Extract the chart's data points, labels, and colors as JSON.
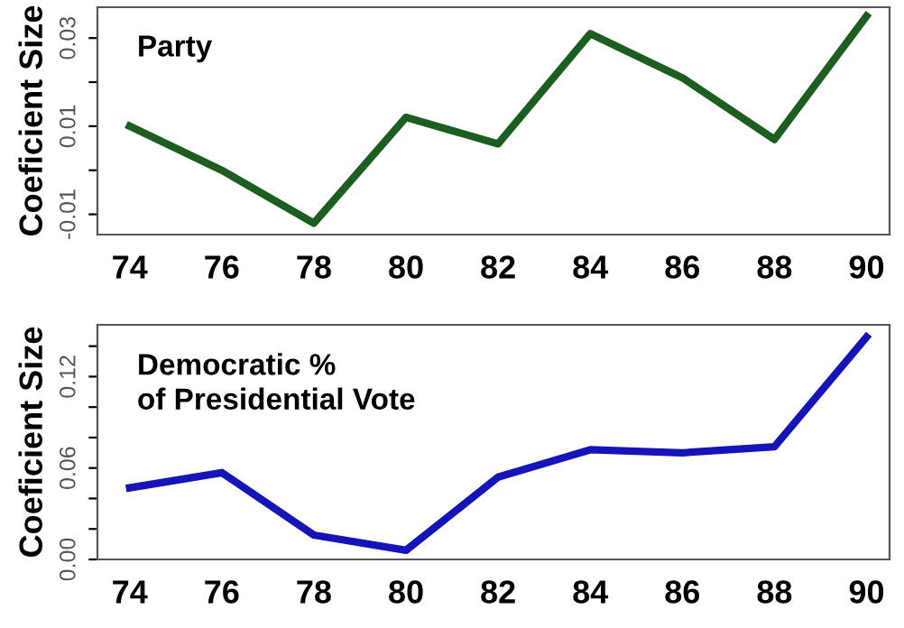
{
  "chart_data": [
    {
      "type": "line",
      "title": "Party",
      "ylabel": "Coeficient Size",
      "x": [
        74,
        76,
        78,
        80,
        82,
        84,
        86,
        88,
        90
      ],
      "series": [
        {
          "color": "#1b5e20",
          "values": [
            0.01,
            0.0,
            -0.012,
            0.012,
            0.006,
            0.031,
            0.021,
            0.007,
            0.035
          ]
        }
      ],
      "xlim": [
        73.3,
        90.5
      ],
      "xticks": [
        74,
        76,
        78,
        80,
        82,
        84,
        86,
        88,
        90
      ],
      "ylim": [
        -0.0146,
        0.037
      ],
      "yticks": [
        -0.01,
        {
          "value": 0,
          "label": null
        },
        0.01,
        {
          "value": 0.02,
          "label": null
        },
        0.03
      ],
      "grid": false,
      "legend": false,
      "marker": "none",
      "line_style": "solid"
    },
    {
      "type": "line",
      "title": "Democratic %\nof Presidential Vote",
      "ylabel": "Coeficient Size",
      "x": [
        74,
        76,
        78,
        80,
        82,
        84,
        86,
        88,
        90
      ],
      "series": [
        {
          "color": "#1414b8",
          "values": [
            0.047,
            0.057,
            0.016,
            0.006,
            0.054,
            0.072,
            0.07,
            0.074,
            0.146
          ]
        }
      ],
      "xlim": [
        73.3,
        90.5
      ],
      "xticks": [
        74,
        76,
        78,
        80,
        82,
        84,
        86,
        88,
        90
      ],
      "ylim": [
        0,
        0.154
      ],
      "yticks": [
        "0.00",
        {
          "value": 0.02,
          "label": null
        },
        {
          "value": 0.04,
          "label": null
        },
        {
          "value": 0.06,
          "label": "0.06"
        },
        {
          "value": 0.08,
          "label": null
        },
        {
          "value": 0.1,
          "label": null
        },
        {
          "value": 0.12,
          "label": "0.12"
        },
        {
          "value": 0.14,
          "label": null
        }
      ],
      "grid": false,
      "legend": false,
      "marker": "none",
      "line_style": "solid"
    }
  ]
}
